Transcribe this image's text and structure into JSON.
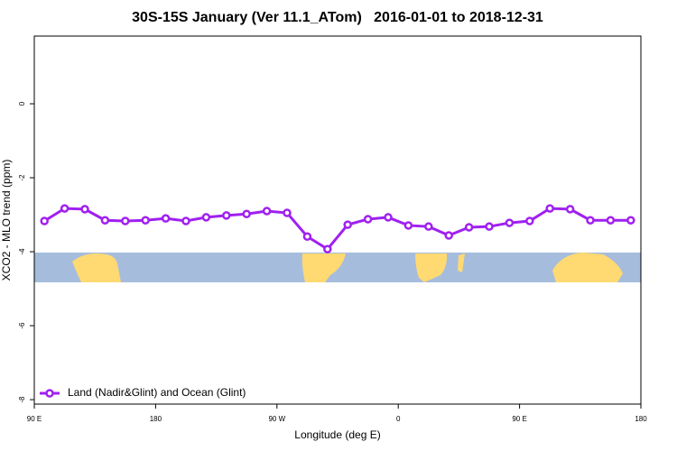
{
  "chart_data": {
    "type": "line",
    "title": "30S-15S January (Ver 11.1_ATom)   2016-01-01 to 2018-12-31",
    "x_label": "Longitude (deg E)",
    "y_label": "XCO2 - MLO trend (ppm)",
    "x": [
      97.5,
      112.5,
      127.5,
      142.5,
      157.5,
      172.5,
      187.5,
      202.5,
      217.5,
      232.5,
      247.5,
      262.5,
      277.5,
      292.5,
      307.5,
      322.5,
      337.5,
      352.5,
      367.5,
      382.5,
      397.5,
      412.5,
      427.5,
      442.5,
      457.5,
      472.5,
      487.5,
      502.5,
      517.5,
      532.5
    ],
    "series": [
      {
        "name": "Land (Nadir&Glint) and Ocean (Glint)",
        "color": "#a020f0",
        "values": [
          -3.17,
          -2.83,
          -2.85,
          -3.15,
          -3.17,
          -3.15,
          -3.1,
          -3.17,
          -3.07,
          -3.02,
          -2.98,
          -2.9,
          -2.95,
          -3.59,
          -3.93,
          -3.27,
          -3.12,
          -3.07,
          -3.29,
          -3.32,
          -3.56,
          -3.34,
          -3.32,
          -3.22,
          -3.17,
          -2.83,
          -2.85,
          -3.15,
          -3.15,
          -3.15
        ]
      }
    ],
    "xlim": [
      90,
      540
    ],
    "xticks": [
      {
        "value": 90,
        "label": "90 E"
      },
      {
        "value": 180,
        "label": "180"
      },
      {
        "value": 270,
        "label": "90 W"
      },
      {
        "value": 360,
        "label": "0"
      },
      {
        "value": 450,
        "label": "90 E"
      },
      {
        "value": 540,
        "label": "180"
      }
    ],
    "ylim": [
      -8.12,
      1.83
    ],
    "yticks": [
      0,
      -2,
      -4,
      -6,
      -8
    ],
    "legend": "bottom-left",
    "grid": false
  }
}
